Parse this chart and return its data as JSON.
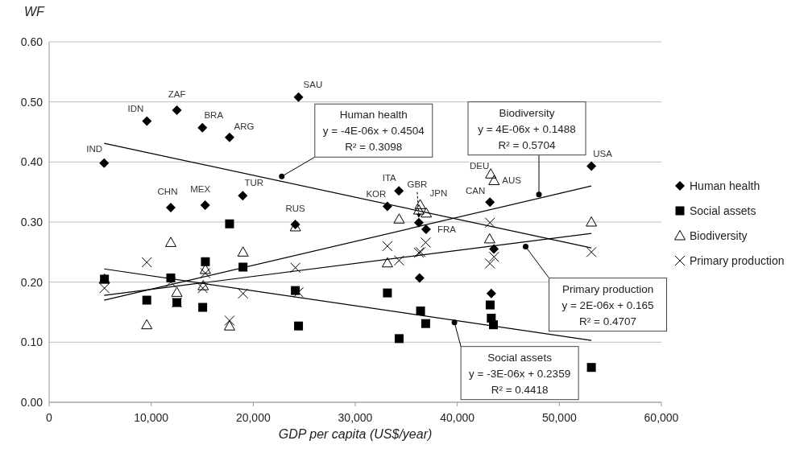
{
  "chart_data": {
    "type": "scatter",
    "xlabel": "GDP per capita (US$/year)",
    "ylabel": "WF",
    "xlim": [
      0,
      60000
    ],
    "xticks": [
      0,
      {
        "value": 10000,
        "label": "10,000"
      },
      {
        "value": 20000,
        "label": "20,000"
      },
      {
        "value": 30000,
        "label": "30,000"
      },
      {
        "value": 40000,
        "label": "40,000"
      },
      {
        "value": 50000,
        "label": "50,000"
      },
      {
        "value": 60000,
        "label": "60,000"
      }
    ],
    "ylim": [
      0,
      0.6
    ],
    "yticks": [
      {
        "value": 0,
        "label": "0.00"
      },
      {
        "value": 0.1,
        "label": "0.10"
      },
      {
        "value": 0.2,
        "label": "0.20"
      },
      {
        "value": 0.3,
        "label": "0.30"
      },
      {
        "value": 0.4,
        "label": "0.40"
      },
      {
        "value": 0.5,
        "label": "0.50"
      },
      {
        "value": 0.6,
        "label": "0.60"
      }
    ],
    "grid": "y",
    "legend": "right",
    "series": [
      {
        "name": "Human health",
        "color": "#000000",
        "marker": "diamond",
        "x": [
          5390,
          9580,
          12520,
          15020,
          17680,
          24440,
          11920,
          15290,
          18970,
          24130,
          33150,
          34280,
          36230,
          36300,
          36940,
          43200,
          43330,
          43590,
          53140
        ],
        "values": [
          0.398,
          0.468,
          0.486,
          0.457,
          0.441,
          0.508,
          0.324,
          0.328,
          0.344,
          0.296,
          0.326,
          0.352,
          0.299,
          0.207,
          0.288,
          0.333,
          0.181,
          0.255,
          0.393
        ]
      },
      {
        "name": "Social assets",
        "color": "#000000",
        "marker": "square",
        "x": [
          5420,
          9570,
          11920,
          12520,
          15050,
          15310,
          17680,
          19000,
          24130,
          24440,
          33150,
          34300,
          36400,
          36900,
          43220,
          43330,
          43540,
          53140
        ],
        "values": [
          0.205,
          0.17,
          0.207,
          0.166,
          0.158,
          0.234,
          0.297,
          0.225,
          0.186,
          0.127,
          0.182,
          0.106,
          0.152,
          0.131,
          0.162,
          0.14,
          0.129,
          0.058
        ]
      },
      {
        "name": "Biodiversity",
        "color": "#000000",
        "marker": "triangle",
        "x": [
          5420,
          9570,
          11920,
          12520,
          15100,
          15310,
          17680,
          19000,
          24130,
          33150,
          34300,
          36230,
          36360,
          36960,
          43170,
          43280,
          43600,
          53140
        ],
        "values": [
          0.205,
          0.129,
          0.266,
          0.183,
          0.194,
          0.221,
          0.127,
          0.25,
          0.292,
          0.232,
          0.305,
          0.32,
          0.329,
          0.315,
          0.272,
          0.38,
          0.369,
          0.3
        ]
      },
      {
        "name": "Primary production",
        "color": "#000000",
        "marker": "cross",
        "x": [
          5420,
          9570,
          11920,
          12520,
          15050,
          15310,
          17680,
          19000,
          24130,
          24440,
          33150,
          34300,
          36230,
          36400,
          36900,
          43200,
          43200,
          43600,
          53140
        ],
        "values": [
          0.19,
          0.233,
          0.2,
          0.166,
          0.19,
          0.215,
          0.136,
          0.181,
          0.224,
          0.183,
          0.26,
          0.236,
          0.249,
          0.25,
          0.266,
          0.299,
          0.231,
          0.242,
          0.25
        ]
      },
      {
        "type": "line",
        "color": "#000000",
        "marker": "none",
        "x": [
          5390,
          53140
        ],
        "values": [
          0.431,
          0.257
        ]
      },
      {
        "type": "line",
        "color": "#000000",
        "marker": "none",
        "x": [
          5390,
          53140
        ],
        "values": [
          0.222,
          0.103
        ]
      },
      {
        "type": "line",
        "color": "#000000",
        "marker": "none",
        "x": [
          5390,
          53140
        ],
        "values": [
          0.17,
          0.36
        ]
      },
      {
        "type": "line",
        "color": "#000000",
        "marker": "none",
        "x": [
          5390,
          53140
        ],
        "values": [
          0.178,
          0.281
        ]
      }
    ],
    "annotations": [
      {
        "text": "IND",
        "x": 5390,
        "y": 0.398
      },
      {
        "text": "IDN",
        "x": 9580,
        "y": 0.468
      },
      {
        "text": "ZAF",
        "x": 12520,
        "y": 0.486
      },
      {
        "text": "BRA",
        "x": 15020,
        "y": 0.457
      },
      {
        "text": "ARG",
        "x": 17680,
        "y": 0.441
      },
      {
        "text": "SAU",
        "x": 24440,
        "y": 0.508
      },
      {
        "text": "CHN",
        "x": 11920,
        "y": 0.324
      },
      {
        "text": "MEX",
        "x": 15290,
        "y": 0.328
      },
      {
        "text": "TUR",
        "x": 18970,
        "y": 0.344
      },
      {
        "text": "RUS",
        "x": 24130,
        "y": 0.296
      },
      {
        "text": "KOR",
        "x": 33150,
        "y": 0.326
      },
      {
        "text": "ITA",
        "x": 34280,
        "y": 0.352
      },
      {
        "text": "GBR",
        "x": 36230,
        "y": 0.299
      },
      {
        "text": "JPN",
        "x": 36360,
        "y": 0.329
      },
      {
        "text": "FRA",
        "x": 36940,
        "y": 0.288
      },
      {
        "text": "CAN",
        "x": 43200,
        "y": 0.333
      },
      {
        "text": "DEU",
        "x": 43280,
        "y": 0.38
      },
      {
        "text": "AUS",
        "x": 43600,
        "y": 0.369
      },
      {
        "text": "USA",
        "x": 53140,
        "y": 0.393
      },
      {
        "text": "Human health\ny = -4E-06x + 0.4504\nR² = 0.3098",
        "x": 22800,
        "y": 0.376
      },
      {
        "text": "Biodiversity\ny = 4E-06x + 0.1488\nR² = 0.5704",
        "x": 48000,
        "y": 0.346
      },
      {
        "text": "Primary production\ny = 2E-06x + 0.165\nR² = 0.4707",
        "x": 46700,
        "y": 0.259
      },
      {
        "text": "Social assets\ny = -3E-06x + 0.2359\nR² = 0.4418",
        "x": 39720,
        "y": 0.133
      }
    ]
  }
}
